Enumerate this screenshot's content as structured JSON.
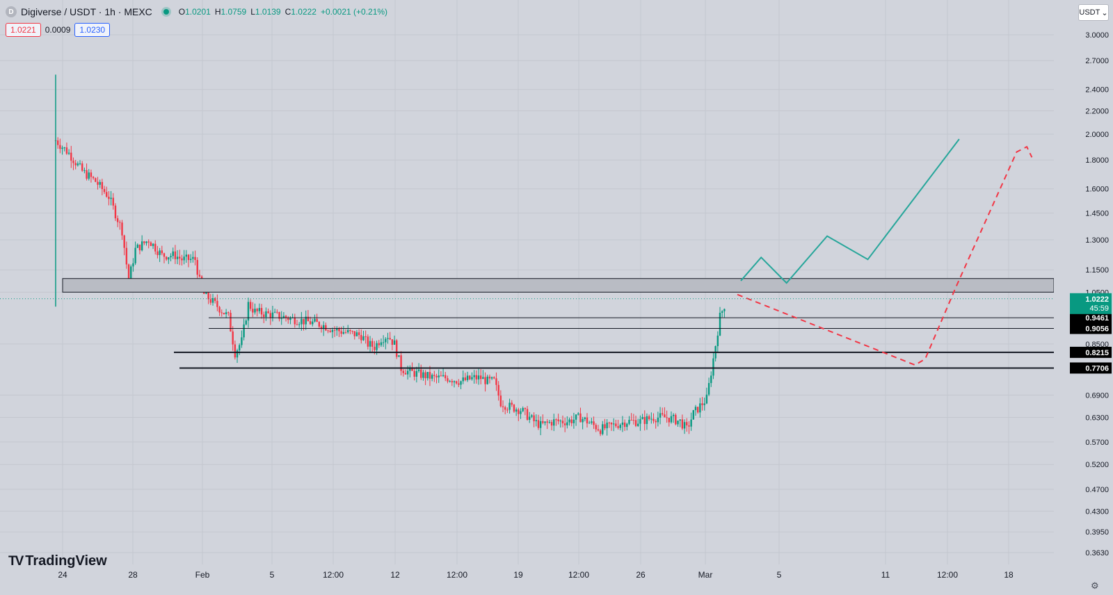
{
  "header": {
    "symbol_icon": "D",
    "title": "Digiverse / USDT · 1h · MEXC",
    "ohlc": {
      "o_key": "O",
      "o_val": "1.0201",
      "h_key": "H",
      "h_val": "1.0759",
      "l_key": "L",
      "l_val": "1.0139",
      "c_key": "C",
      "c_val": "1.0222",
      "change": "+0.0021 (+0.21%)"
    }
  },
  "quote": {
    "sell": "1.0221",
    "spread": "0.0009",
    "buy": "1.0230"
  },
  "currency_selector": {
    "label": "USDT",
    "icon": "chevron-down-icon"
  },
  "logo_text": "TradingView",
  "colors": {
    "up": "#089981",
    "down": "#f23645",
    "background": "#d1d4dc",
    "zone_fill": "#b2b5be"
  },
  "chart_data": {
    "type": "candlestick",
    "scale": "log",
    "ylim": [
      0.34,
      3.2
    ],
    "x_ticks": [
      "24",
      "28",
      "Feb",
      "5",
      "12:00",
      "12",
      "12:00",
      "19",
      "12:00",
      "26",
      "Mar",
      "5",
      "11",
      "12:00",
      "18"
    ],
    "y_ticks": [
      "3.0000",
      "2.7000",
      "2.4000",
      "2.2000",
      "2.0000",
      "1.8000",
      "1.6000",
      "1.4500",
      "1.3000",
      "1.1500",
      "1.0500",
      "0.8500",
      "0.6900",
      "0.6300",
      "0.5700",
      "0.5200",
      "0.4700",
      "0.4300",
      "0.3950",
      "0.3630"
    ],
    "y_tick_values": [
      3.0,
      2.7,
      2.4,
      2.2,
      2.0,
      1.8,
      1.6,
      1.45,
      1.3,
      1.15,
      1.05,
      0.85,
      0.69,
      0.63,
      0.57,
      0.52,
      0.47,
      0.43,
      0.395,
      0.363
    ],
    "last_price": {
      "value": 1.0222,
      "label": "1.0222",
      "countdown": "45:59"
    },
    "price_path": [
      [
        0,
        1.95
      ],
      [
        2,
        1.85
      ],
      [
        4,
        1.72
      ],
      [
        6,
        1.65
      ],
      [
        8,
        1.55
      ],
      [
        10,
        1.35
      ],
      [
        11,
        1.1
      ],
      [
        12,
        1.25
      ],
      [
        14,
        1.3
      ],
      [
        16,
        1.22
      ],
      [
        18,
        1.22
      ],
      [
        19,
        1.2
      ],
      [
        21,
        1.2
      ],
      [
        22,
        1.05
      ],
      [
        24,
        1.0
      ],
      [
        26,
        0.95
      ],
      [
        27,
        0.82
      ],
      [
        28,
        0.86
      ],
      [
        29,
        1.0
      ],
      [
        30,
        0.97
      ],
      [
        32,
        0.96
      ],
      [
        34,
        0.95
      ],
      [
        36,
        0.94
      ],
      [
        38,
        0.93
      ],
      [
        40,
        0.92
      ],
      [
        42,
        0.9
      ],
      [
        44,
        0.89
      ],
      [
        46,
        0.88
      ],
      [
        47,
        0.85
      ],
      [
        48,
        0.84
      ],
      [
        49,
        0.87
      ],
      [
        50,
        0.88
      ],
      [
        51,
        0.85
      ],
      [
        52,
        0.77
      ],
      [
        53,
        0.76
      ],
      [
        55,
        0.75
      ],
      [
        57,
        0.74
      ],
      [
        59,
        0.74
      ],
      [
        61,
        0.73
      ],
      [
        63,
        0.74
      ],
      [
        64,
        0.74
      ],
      [
        65,
        0.73
      ],
      [
        66,
        0.73
      ],
      [
        67,
        0.67
      ],
      [
        68,
        0.66
      ],
      [
        70,
        0.65
      ],
      [
        72,
        0.62
      ],
      [
        73,
        0.61
      ],
      [
        75,
        0.62
      ],
      [
        77,
        0.62
      ],
      [
        79,
        0.63
      ],
      [
        80,
        0.62
      ],
      [
        82,
        0.6
      ],
      [
        84,
        0.61
      ],
      [
        86,
        0.62
      ],
      [
        88,
        0.62
      ],
      [
        90,
        0.63
      ],
      [
        92,
        0.63
      ],
      [
        94,
        0.62
      ],
      [
        95,
        0.6
      ],
      [
        96,
        0.64
      ],
      [
        97,
        0.66
      ],
      [
        98,
        0.68
      ],
      [
        99,
        0.8
      ],
      [
        100,
        0.95
      ],
      [
        101,
        1.02
      ]
    ],
    "zone": {
      "low": 1.05,
      "high": 1.11
    },
    "horizontal_levels": [
      {
        "value": 0.9461,
        "label": "0.9461"
      },
      {
        "value": 0.9056,
        "label": "0.9056"
      },
      {
        "value": 0.8215,
        "label": "0.8215"
      },
      {
        "value": 0.7706,
        "label": "0.7706"
      }
    ],
    "bullish_projection": [
      [
        0,
        1.1
      ],
      [
        4,
        1.21
      ],
      [
        9,
        1.09
      ],
      [
        17,
        1.32
      ],
      [
        25,
        1.2
      ],
      [
        43,
        1.96
      ]
    ],
    "bearish_projection": [
      [
        0,
        1.04
      ],
      [
        35,
        0.78
      ],
      [
        37,
        0.8
      ],
      [
        43,
        1.07
      ],
      [
        55,
        1.86
      ],
      [
        57,
        1.9
      ],
      [
        58,
        1.82
      ]
    ]
  }
}
